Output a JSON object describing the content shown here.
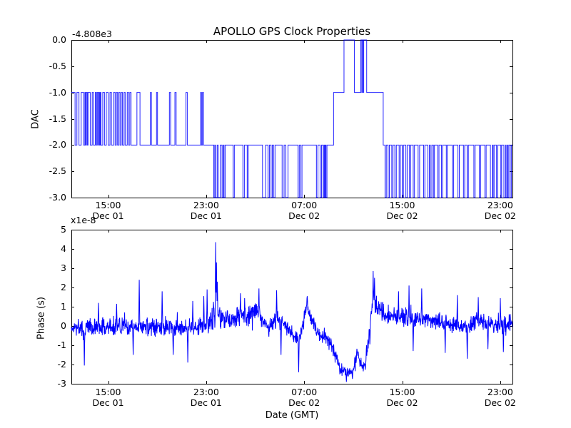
{
  "figure": {
    "title": "APOLLO GPS Clock Properties",
    "background_color": "#ffffff",
    "line_color": "#0000ff",
    "axis_color": "#000000"
  },
  "chart_data": [
    {
      "type": "line",
      "subtype": "step",
      "title": "APOLLO GPS Clock Properties",
      "ylabel": "DAC",
      "y_offset_text": "-4.808e3",
      "ylim": [
        -3.0,
        0.0
      ],
      "ytick_values": [
        0.0,
        -0.5,
        -1.0,
        -1.5,
        -2.0,
        -2.5,
        -3.0
      ],
      "ytick_labels": [
        "0.0",
        "-0.5",
        "-1.0",
        "-1.5",
        "-2.0",
        "-2.5",
        "-3.0"
      ],
      "x_hours_lim": [
        0,
        36
      ],
      "x_origin": "Dec 01 12:00 GMT",
      "xtick_hours": [
        3,
        11,
        19,
        27,
        35
      ],
      "xtick_labels": [
        [
          "15:00",
          "Dec 01"
        ],
        [
          "23:00",
          "Dec 01"
        ],
        [
          "07:00",
          "Dec 02"
        ],
        [
          "15:00",
          "Dec 02"
        ],
        [
          "23:00",
          "Dec 02"
        ]
      ],
      "grid": false,
      "legend": null,
      "step_points": [
        [
          0,
          -1
        ],
        [
          0.3,
          -2
        ],
        [
          0.45,
          -1
        ],
        [
          0.62,
          -2
        ],
        [
          0.8,
          -1
        ],
        [
          1.0,
          -2
        ],
        [
          1.1,
          -1
        ],
        [
          1.16,
          -2
        ],
        [
          1.22,
          -1
        ],
        [
          1.3,
          -2
        ],
        [
          1.36,
          -1
        ],
        [
          1.54,
          -2
        ],
        [
          1.7,
          -1
        ],
        [
          1.8,
          -2
        ],
        [
          1.95,
          -1
        ],
        [
          2.03,
          -2
        ],
        [
          2.1,
          -1
        ],
        [
          2.17,
          -2
        ],
        [
          2.22,
          -1
        ],
        [
          2.3,
          -2
        ],
        [
          2.36,
          -1
        ],
        [
          2.42,
          -2
        ],
        [
          2.56,
          -1
        ],
        [
          2.7,
          -2
        ],
        [
          2.85,
          -1
        ],
        [
          3.0,
          -2
        ],
        [
          3.15,
          -1
        ],
        [
          3.27,
          -2
        ],
        [
          3.45,
          -1
        ],
        [
          3.57,
          -2
        ],
        [
          3.67,
          -1
        ],
        [
          3.77,
          -2
        ],
        [
          3.87,
          -1
        ],
        [
          3.97,
          -2
        ],
        [
          4.07,
          -1
        ],
        [
          4.17,
          -2
        ],
        [
          4.3,
          -1
        ],
        [
          4.39,
          -2
        ],
        [
          4.56,
          -1
        ],
        [
          4.67,
          -2
        ],
        [
          4.77,
          -1
        ],
        [
          4.87,
          -2
        ],
        [
          5.35,
          -1
        ],
        [
          5.6,
          -2
        ],
        [
          6.45,
          -1
        ],
        [
          6.53,
          -2
        ],
        [
          6.95,
          -1
        ],
        [
          7.03,
          -2
        ],
        [
          8.0,
          -1
        ],
        [
          8.1,
          -2
        ],
        [
          8.45,
          -1
        ],
        [
          8.55,
          -2
        ],
        [
          9.35,
          -1
        ],
        [
          9.46,
          -2
        ],
        [
          10.55,
          -1
        ],
        [
          10.62,
          -2
        ],
        [
          10.7,
          -1
        ],
        [
          10.78,
          -2
        ],
        [
          11.62,
          -3
        ],
        [
          11.7,
          -2
        ],
        [
          11.76,
          -3
        ],
        [
          11.9,
          -2
        ],
        [
          11.98,
          -3
        ],
        [
          12.15,
          -2
        ],
        [
          12.3,
          -3
        ],
        [
          12.4,
          -2
        ],
        [
          12.46,
          -3
        ],
        [
          12.55,
          -2
        ],
        [
          13.2,
          -3
        ],
        [
          13.3,
          -2
        ],
        [
          14.0,
          -3
        ],
        [
          14.12,
          -2
        ],
        [
          14.35,
          -3
        ],
        [
          14.43,
          -2
        ],
        [
          15.6,
          -3
        ],
        [
          15.85,
          -2
        ],
        [
          16.05,
          -3
        ],
        [
          16.16,
          -2
        ],
        [
          16.3,
          -3
        ],
        [
          16.4,
          -2
        ],
        [
          16.5,
          -3
        ],
        [
          16.62,
          -2
        ],
        [
          17.2,
          -3
        ],
        [
          17.36,
          -2
        ],
        [
          17.5,
          -3
        ],
        [
          17.68,
          -2
        ],
        [
          18.5,
          -3
        ],
        [
          18.6,
          -2
        ],
        [
          18.72,
          -3
        ],
        [
          18.82,
          -2
        ],
        [
          20.0,
          -3
        ],
        [
          20.12,
          -2
        ],
        [
          20.3,
          -3
        ],
        [
          20.42,
          -2
        ],
        [
          20.55,
          -3
        ],
        [
          20.62,
          -2
        ],
        [
          20.68,
          -3
        ],
        [
          20.74,
          -2
        ],
        [
          20.78,
          -3
        ],
        [
          20.86,
          -2
        ],
        [
          21.4,
          -1
        ],
        [
          22.25,
          0
        ],
        [
          23.1,
          -1
        ],
        [
          23.62,
          0
        ],
        [
          23.7,
          -1
        ],
        [
          23.74,
          0
        ],
        [
          23.82,
          -1
        ],
        [
          23.86,
          0
        ],
        [
          24.1,
          -1
        ],
        [
          25.45,
          -2
        ],
        [
          25.6,
          -3
        ],
        [
          25.7,
          -2
        ],
        [
          25.85,
          -3
        ],
        [
          25.95,
          -2
        ],
        [
          26.15,
          -3
        ],
        [
          26.25,
          -2
        ],
        [
          26.4,
          -3
        ],
        [
          26.52,
          -2
        ],
        [
          26.75,
          -3
        ],
        [
          26.85,
          -2
        ],
        [
          27.0,
          -3
        ],
        [
          27.1,
          -2
        ],
        [
          27.3,
          -3
        ],
        [
          27.42,
          -2
        ],
        [
          27.6,
          -3
        ],
        [
          27.68,
          -2
        ],
        [
          27.9,
          -3
        ],
        [
          28.0,
          -2
        ],
        [
          28.3,
          -3
        ],
        [
          28.42,
          -2
        ],
        [
          28.75,
          -3
        ],
        [
          28.85,
          -2
        ],
        [
          29.1,
          -3
        ],
        [
          29.22,
          -2
        ],
        [
          29.3,
          -3
        ],
        [
          29.42,
          -2
        ],
        [
          29.55,
          -3
        ],
        [
          29.63,
          -2
        ],
        [
          29.9,
          -3
        ],
        [
          30.0,
          -2
        ],
        [
          30.2,
          -3
        ],
        [
          30.3,
          -2
        ],
        [
          30.6,
          -3
        ],
        [
          30.68,
          -2
        ],
        [
          31.1,
          -3
        ],
        [
          31.2,
          -2
        ],
        [
          31.55,
          -3
        ],
        [
          31.66,
          -2
        ],
        [
          32.0,
          -3
        ],
        [
          32.1,
          -2
        ],
        [
          32.3,
          -3
        ],
        [
          32.4,
          -2
        ],
        [
          32.85,
          -3
        ],
        [
          32.95,
          -2
        ],
        [
          33.3,
          -3
        ],
        [
          33.4,
          -2
        ],
        [
          33.75,
          -3
        ],
        [
          33.85,
          -2
        ],
        [
          34.2,
          -3
        ],
        [
          34.36,
          -2
        ],
        [
          34.42,
          -3
        ],
        [
          34.5,
          -2
        ],
        [
          34.7,
          -3
        ],
        [
          34.8,
          -2
        ],
        [
          35.05,
          -3
        ],
        [
          35.12,
          -2
        ],
        [
          35.3,
          -3
        ],
        [
          35.44,
          -2
        ],
        [
          35.48,
          -3
        ],
        [
          35.58,
          -2
        ],
        [
          35.62,
          -3
        ],
        [
          35.7,
          -2
        ],
        [
          35.82,
          -3
        ],
        [
          35.92,
          -2
        ],
        [
          36,
          -2
        ]
      ]
    },
    {
      "type": "line",
      "subtype": "noisy",
      "ylabel": "Phase (s)",
      "xlabel": "Date (GMT)",
      "y_offset_text": "x1e-8",
      "y_unit_scale": 1e-08,
      "ylim": [
        -3,
        5
      ],
      "ytick_values": [
        5,
        4,
        3,
        2,
        1,
        0,
        -1,
        -2,
        -3
      ],
      "ytick_labels": [
        "5",
        "4",
        "3",
        "2",
        "1",
        "0",
        "-1",
        "-2",
        "-3"
      ],
      "x_hours_lim": [
        0,
        36
      ],
      "x_origin": "Dec 01 12:00 GMT",
      "xtick_hours": [
        3,
        11,
        19,
        27,
        35
      ],
      "xtick_labels": [
        [
          "15:00",
          "Dec 01"
        ],
        [
          "23:00",
          "Dec 01"
        ],
        [
          "07:00",
          "Dec 02"
        ],
        [
          "15:00",
          "Dec 02"
        ],
        [
          "23:00",
          "Dec 02"
        ]
      ],
      "grid": false,
      "legend": null,
      "envelope_t_mean_amp": [
        [
          0,
          -0.08,
          0.42
        ],
        [
          2,
          -0.05,
          0.45
        ],
        [
          4,
          0,
          0.48
        ],
        [
          6,
          -0.05,
          0.45
        ],
        [
          8,
          -0.08,
          0.45
        ],
        [
          10,
          -0.05,
          0.42
        ],
        [
          11.2,
          0.05,
          0.45
        ],
        [
          11.6,
          0.45,
          0.8
        ],
        [
          12.1,
          0.55,
          0.7
        ],
        [
          12.8,
          0.4,
          0.55
        ],
        [
          13.6,
          0.5,
          0.6
        ],
        [
          14.4,
          0.5,
          0.5
        ],
        [
          15.1,
          0.8,
          0.5
        ],
        [
          15.6,
          0.3,
          0.45
        ],
        [
          16.1,
          -0.15,
          0.4
        ],
        [
          16.7,
          0.35,
          0.5
        ],
        [
          17.3,
          0.15,
          0.4
        ],
        [
          17.9,
          -0.25,
          0.35
        ],
        [
          18.5,
          -0.8,
          0.45
        ],
        [
          18.8,
          -0.1,
          0.35
        ],
        [
          19.2,
          1.05,
          0.4
        ],
        [
          19.7,
          0.15,
          0.4
        ],
        [
          20.3,
          -0.55,
          0.4
        ],
        [
          20.8,
          -0.5,
          0.4
        ],
        [
          21.3,
          -1.1,
          0.4
        ],
        [
          21.9,
          -2.2,
          0.3
        ],
        [
          22.5,
          -2.4,
          0.28
        ],
        [
          23.0,
          -2.25,
          0.3
        ],
        [
          23.35,
          -1.4,
          0.4
        ],
        [
          23.65,
          -2.0,
          0.3
        ],
        [
          23.95,
          -2.15,
          0.3
        ],
        [
          24.25,
          -0.8,
          0.5
        ],
        [
          24.6,
          1.3,
          0.65
        ],
        [
          25,
          1,
          0.55
        ],
        [
          25.7,
          0.6,
          0.5
        ],
        [
          26.5,
          0.45,
          0.5
        ],
        [
          27.5,
          0.5,
          0.5
        ],
        [
          28.5,
          0.3,
          0.48
        ],
        [
          29.5,
          0.3,
          0.45
        ],
        [
          30.5,
          0.2,
          0.45
        ],
        [
          31.5,
          0.05,
          0.45
        ],
        [
          32.2,
          -0.1,
          0.45
        ],
        [
          33,
          0.3,
          0.45
        ],
        [
          33.8,
          0.15,
          0.45
        ],
        [
          34.5,
          0.05,
          0.45
        ],
        [
          35.2,
          0,
          0.5
        ],
        [
          36,
          0.3,
          0.45
        ]
      ],
      "spike_events_t_value": [
        [
          1.05,
          -2.05
        ],
        [
          2.2,
          1.2
        ],
        [
          3.7,
          1.15
        ],
        [
          5.05,
          -1.5
        ],
        [
          5.53,
          2.4
        ],
        [
          7.4,
          1.8
        ],
        [
          8.3,
          -1.5
        ],
        [
          9.5,
          -1.9
        ],
        [
          9.9,
          1.3
        ],
        [
          10.8,
          1.55
        ],
        [
          11.07,
          1.9
        ],
        [
          11.78,
          4.35
        ],
        [
          11.84,
          3.3
        ],
        [
          11.92,
          2.3
        ],
        [
          13.8,
          1.7
        ],
        [
          15.3,
          1.95
        ],
        [
          16.75,
          1.85
        ],
        [
          17.1,
          -1.5
        ],
        [
          18.55,
          -2.4
        ],
        [
          19.25,
          1.55
        ],
        [
          22.45,
          -2.9
        ],
        [
          22.95,
          -2.75
        ],
        [
          24.62,
          2.85
        ],
        [
          24.75,
          2.5
        ],
        [
          26.7,
          1.8
        ],
        [
          27.55,
          2.1
        ],
        [
          27.9,
          -1.3
        ],
        [
          28.6,
          1.95
        ],
        [
          30.5,
          -1.4
        ],
        [
          31.5,
          1.6
        ],
        [
          32.3,
          -1.7
        ],
        [
          33.2,
          1.5
        ],
        [
          34,
          -1.2
        ],
        [
          35,
          1.45
        ],
        [
          35.25,
          -1.35
        ]
      ],
      "render": {
        "n_points": 1600,
        "seed": 7
      }
    }
  ]
}
